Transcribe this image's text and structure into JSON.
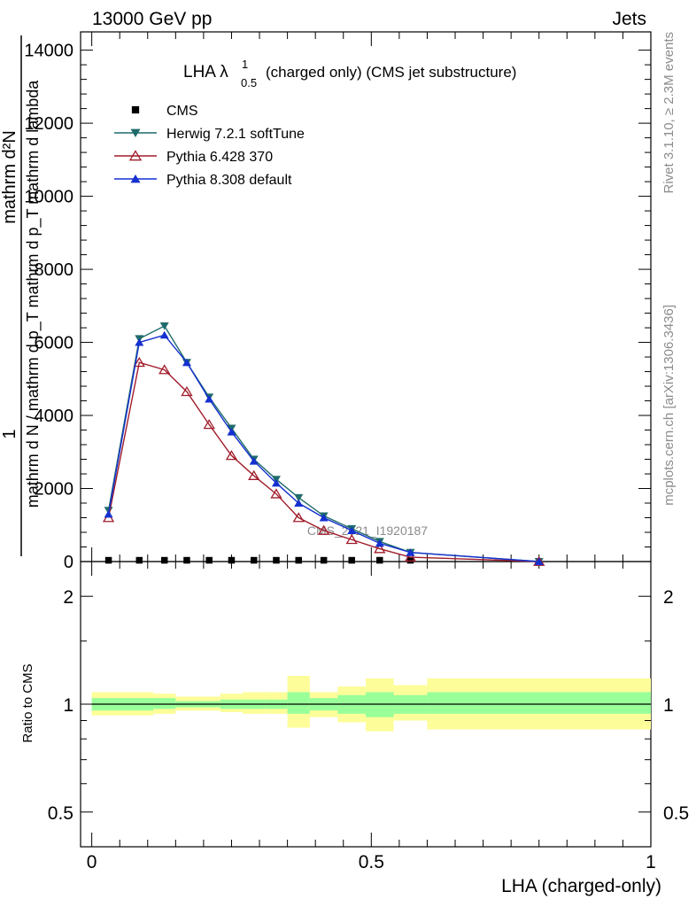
{
  "header": {
    "left": "13000 GeV pp",
    "right": "Jets",
    "title_main": "LHA λ",
    "title_sup": "1",
    "title_sub": "0.5",
    "title_rest": "(charged only) (CMS jet substructure)"
  },
  "side_labels": {
    "rivet": "Rivet 3.1.10, ≥ 2.3M events",
    "mcplots": "mcplots.cern.ch [arXiv:1306.3436]"
  },
  "watermark": "CMS_2021_I1920187",
  "ylabel_upper": {
    "numerator_one": "1",
    "numerator": "mathrm d^{2}N",
    "numerator_display": "mathrm d²N",
    "denominator": "mathrm d N / mathrm d p_T mathrm d p_T mathrm d lambda"
  },
  "ylabel_lower": "Ratio to CMS",
  "xlabel": "LHA (charged-only)",
  "chart_data": [
    {
      "type": "line",
      "panel": "main",
      "xlim": [
        -0.02,
        1.0
      ],
      "ylim": [
        0,
        14500
      ],
      "yticks": [
        0,
        2000,
        4000,
        6000,
        8000,
        10000,
        12000,
        14000
      ],
      "ytick_labels": [
        "0",
        "2000",
        "4000",
        "6000",
        "8000",
        "10000",
        "12000",
        "14000"
      ],
      "legend_position": "top-left",
      "series": [
        {
          "name": "CMS",
          "color": "#000000",
          "marker": "square",
          "x": [
            0.03,
            0.085,
            0.13,
            0.17,
            0.21,
            0.25,
            0.29,
            0.33,
            0.37,
            0.415,
            0.465,
            0.515,
            0.57
          ],
          "y": [
            35,
            35,
            35,
            35,
            35,
            35,
            35,
            35,
            35,
            35,
            35,
            35,
            35
          ]
        },
        {
          "name": "Herwig 7.2.1 softTune",
          "color": "#1f6b6b",
          "marker": "triangle-down",
          "x": [
            0.03,
            0.085,
            0.13,
            0.17,
            0.21,
            0.25,
            0.29,
            0.33,
            0.37,
            0.415,
            0.465,
            0.515,
            0.57,
            0.8
          ],
          "y": [
            1400,
            6100,
            6450,
            5450,
            4500,
            3650,
            2800,
            2250,
            1750,
            1250,
            900,
            550,
            250,
            0
          ]
        },
        {
          "name": "Pythia 6.428 370",
          "color": "#a01c2a",
          "marker": "triangle-up-open",
          "x": [
            0.03,
            0.085,
            0.13,
            0.17,
            0.21,
            0.25,
            0.29,
            0.33,
            0.37,
            0.415,
            0.465,
            0.515,
            0.57,
            0.8
          ],
          "y": [
            1200,
            5450,
            5250,
            4650,
            3750,
            2900,
            2350,
            1850,
            1200,
            850,
            600,
            350,
            120,
            0
          ]
        },
        {
          "name": "Pythia 8.308 default",
          "color": "#1530d0",
          "marker": "triangle-up",
          "x": [
            0.03,
            0.085,
            0.13,
            0.17,
            0.21,
            0.25,
            0.29,
            0.33,
            0.37,
            0.415,
            0.465,
            0.515,
            0.57,
            0.8
          ],
          "y": [
            1300,
            6000,
            6200,
            5450,
            4450,
            3550,
            2750,
            2150,
            1600,
            1200,
            850,
            500,
            250,
            0
          ]
        }
      ]
    },
    {
      "type": "area",
      "panel": "ratio",
      "xlim": [
        -0.02,
        1.0
      ],
      "ylim": [
        0.4,
        2.5
      ],
      "ylog": true,
      "ytick_labels": [
        "0.5",
        "1",
        "2"
      ],
      "xtick_labels": [
        "0",
        "0.5",
        "1"
      ],
      "bins": [
        {
          "x0": 0.0,
          "x1": 0.06,
          "stat": [
            0.96,
            1.04
          ],
          "total": [
            0.93,
            1.08
          ]
        },
        {
          "x0": 0.06,
          "x1": 0.11,
          "stat": [
            0.96,
            1.04
          ],
          "total": [
            0.93,
            1.08
          ]
        },
        {
          "x0": 0.11,
          "x1": 0.15,
          "stat": [
            0.97,
            1.04
          ],
          "total": [
            0.94,
            1.07
          ]
        },
        {
          "x0": 0.15,
          "x1": 0.19,
          "stat": [
            0.98,
            1.02
          ],
          "total": [
            0.96,
            1.05
          ]
        },
        {
          "x0": 0.19,
          "x1": 0.23,
          "stat": [
            0.98,
            1.02
          ],
          "total": [
            0.96,
            1.05
          ]
        },
        {
          "x0": 0.23,
          "x1": 0.27,
          "stat": [
            0.97,
            1.03
          ],
          "total": [
            0.95,
            1.07
          ]
        },
        {
          "x0": 0.27,
          "x1": 0.31,
          "stat": [
            0.97,
            1.03
          ],
          "total": [
            0.94,
            1.08
          ]
        },
        {
          "x0": 0.31,
          "x1": 0.35,
          "stat": [
            0.97,
            1.03
          ],
          "total": [
            0.94,
            1.08
          ]
        },
        {
          "x0": 0.35,
          "x1": 0.39,
          "stat": [
            0.94,
            1.08
          ],
          "total": [
            0.86,
            1.2
          ]
        },
        {
          "x0": 0.39,
          "x1": 0.44,
          "stat": [
            0.96,
            1.04
          ],
          "total": [
            0.92,
            1.08
          ]
        },
        {
          "x0": 0.44,
          "x1": 0.49,
          "stat": [
            0.94,
            1.06
          ],
          "total": [
            0.89,
            1.12
          ]
        },
        {
          "x0": 0.49,
          "x1": 0.54,
          "stat": [
            0.92,
            1.08
          ],
          "total": [
            0.84,
            1.18
          ]
        },
        {
          "x0": 0.54,
          "x1": 0.6,
          "stat": [
            0.94,
            1.06
          ],
          "total": [
            0.9,
            1.13
          ]
        },
        {
          "x0": 0.6,
          "x1": 1.0,
          "stat": [
            0.94,
            1.08
          ],
          "total": [
            0.85,
            1.18
          ]
        }
      ]
    }
  ]
}
